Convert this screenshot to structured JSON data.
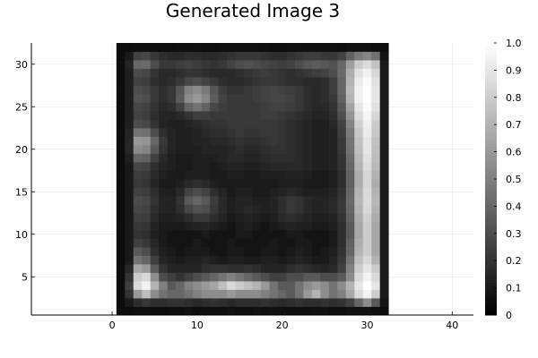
{
  "chart_data": {
    "type": "heatmap",
    "title": "Generated Image 3",
    "xlabel": "",
    "ylabel": "",
    "xlim": [
      -9.5,
      42.5
    ],
    "ylim": [
      0.5,
      32.5
    ],
    "x_ticks": [
      0,
      10,
      20,
      30,
      40
    ],
    "y_ticks": [
      5,
      10,
      15,
      20,
      25,
      30
    ],
    "grid": true,
    "colormap": "grays",
    "color_range": [
      0,
      1
    ],
    "colorbar_ticks": [
      0,
      0.1,
      0.2,
      0.3,
      0.4,
      0.5,
      0.6,
      0.7,
      0.8,
      0.9,
      1.0
    ],
    "colorbar_labels": [
      "0",
      "0.1",
      "0.2",
      "0.3",
      "0.4",
      "0.5",
      "0.6",
      "0.7",
      "0.8",
      "0.9",
      "1.0"
    ],
    "matrix_size": [
      32,
      32
    ],
    "matrix_rows_bottom_to_top": [
      [
        0.05,
        0.05,
        0.06,
        0.06,
        0.05,
        0.05,
        0.06,
        0.06,
        0.07,
        0.06,
        0.06,
        0.06,
        0.06,
        0.07,
        0.06,
        0.06,
        0.07,
        0.06,
        0.07,
        0.07,
        0.06,
        0.06,
        0.06,
        0.07,
        0.07,
        0.06,
        0.06,
        0.07,
        0.07,
        0.07,
        0.06,
        0.05
      ],
      [
        0.05,
        0.1,
        0.18,
        0.22,
        0.18,
        0.18,
        0.2,
        0.2,
        0.18,
        0.16,
        0.18,
        0.2,
        0.18,
        0.16,
        0.18,
        0.18,
        0.18,
        0.2,
        0.18,
        0.16,
        0.18,
        0.2,
        0.18,
        0.18,
        0.2,
        0.18,
        0.2,
        0.25,
        0.4,
        0.55,
        0.35,
        0.08
      ],
      [
        0.05,
        0.2,
        0.6,
        0.75,
        0.55,
        0.45,
        0.4,
        0.4,
        0.45,
        0.5,
        0.55,
        0.55,
        0.55,
        0.6,
        0.55,
        0.55,
        0.55,
        0.5,
        0.45,
        0.4,
        0.35,
        0.45,
        0.6,
        0.7,
        0.55,
        0.45,
        0.5,
        0.65,
        0.85,
        0.95,
        0.8,
        0.1
      ],
      [
        0.05,
        0.25,
        0.85,
        0.95,
        0.7,
        0.5,
        0.35,
        0.4,
        0.5,
        0.55,
        0.6,
        0.65,
        0.75,
        0.85,
        0.8,
        0.75,
        0.7,
        0.6,
        0.45,
        0.35,
        0.35,
        0.45,
        0.55,
        0.6,
        0.55,
        0.45,
        0.55,
        0.7,
        0.9,
        1.0,
        0.9,
        0.1
      ],
      [
        0.05,
        0.2,
        0.8,
        0.85,
        0.55,
        0.3,
        0.25,
        0.2,
        0.25,
        0.3,
        0.35,
        0.4,
        0.45,
        0.5,
        0.45,
        0.4,
        0.35,
        0.3,
        0.25,
        0.25,
        0.3,
        0.3,
        0.35,
        0.35,
        0.3,
        0.3,
        0.35,
        0.55,
        0.85,
        0.95,
        0.85,
        0.1
      ],
      [
        0.05,
        0.15,
        0.65,
        0.6,
        0.35,
        0.2,
        0.15,
        0.15,
        0.15,
        0.15,
        0.18,
        0.2,
        0.2,
        0.18,
        0.18,
        0.2,
        0.18,
        0.15,
        0.15,
        0.15,
        0.18,
        0.2,
        0.18,
        0.16,
        0.15,
        0.16,
        0.25,
        0.5,
        0.8,
        0.9,
        0.8,
        0.1
      ],
      [
        0.05,
        0.1,
        0.45,
        0.4,
        0.25,
        0.15,
        0.12,
        0.1,
        0.12,
        0.12,
        0.14,
        0.12,
        0.1,
        0.12,
        0.12,
        0.1,
        0.1,
        0.12,
        0.12,
        0.1,
        0.12,
        0.14,
        0.12,
        0.1,
        0.1,
        0.14,
        0.22,
        0.45,
        0.75,
        0.85,
        0.7,
        0.1
      ],
      [
        0.05,
        0.1,
        0.35,
        0.3,
        0.18,
        0.12,
        0.1,
        0.08,
        0.1,
        0.1,
        0.1,
        0.08,
        0.08,
        0.1,
        0.1,
        0.08,
        0.08,
        0.1,
        0.1,
        0.08,
        0.1,
        0.12,
        0.1,
        0.08,
        0.1,
        0.12,
        0.2,
        0.4,
        0.7,
        0.8,
        0.65,
        0.1
      ],
      [
        0.05,
        0.1,
        0.25,
        0.22,
        0.15,
        0.1,
        0.08,
        0.08,
        0.08,
        0.1,
        0.08,
        0.08,
        0.08,
        0.1,
        0.08,
        0.08,
        0.08,
        0.08,
        0.1,
        0.08,
        0.08,
        0.1,
        0.1,
        0.08,
        0.08,
        0.1,
        0.18,
        0.38,
        0.68,
        0.8,
        0.65,
        0.1
      ],
      [
        0.05,
        0.1,
        0.2,
        0.18,
        0.12,
        0.1,
        0.08,
        0.08,
        0.08,
        0.08,
        0.1,
        0.08,
        0.08,
        0.08,
        0.1,
        0.1,
        0.08,
        0.08,
        0.08,
        0.08,
        0.1,
        0.1,
        0.08,
        0.08,
        0.08,
        0.1,
        0.18,
        0.35,
        0.65,
        0.8,
        0.65,
        0.1
      ],
      [
        0.05,
        0.1,
        0.22,
        0.2,
        0.14,
        0.1,
        0.1,
        0.1,
        0.12,
        0.14,
        0.15,
        0.12,
        0.1,
        0.08,
        0.1,
        0.12,
        0.1,
        0.08,
        0.1,
        0.12,
        0.14,
        0.12,
        0.12,
        0.1,
        0.1,
        0.12,
        0.18,
        0.35,
        0.65,
        0.8,
        0.65,
        0.1
      ],
      [
        0.05,
        0.1,
        0.25,
        0.24,
        0.16,
        0.12,
        0.12,
        0.14,
        0.18,
        0.22,
        0.22,
        0.18,
        0.14,
        0.1,
        0.12,
        0.14,
        0.12,
        0.1,
        0.12,
        0.16,
        0.18,
        0.16,
        0.14,
        0.12,
        0.12,
        0.14,
        0.2,
        0.38,
        0.68,
        0.82,
        0.68,
        0.1
      ],
      [
        0.05,
        0.1,
        0.28,
        0.26,
        0.18,
        0.14,
        0.14,
        0.18,
        0.28,
        0.32,
        0.3,
        0.22,
        0.16,
        0.12,
        0.14,
        0.16,
        0.14,
        0.12,
        0.14,
        0.18,
        0.22,
        0.2,
        0.16,
        0.14,
        0.14,
        0.16,
        0.22,
        0.4,
        0.7,
        0.85,
        0.7,
        0.1
      ],
      [
        0.05,
        0.1,
        0.3,
        0.28,
        0.2,
        0.14,
        0.14,
        0.2,
        0.35,
        0.4,
        0.34,
        0.24,
        0.16,
        0.12,
        0.14,
        0.14,
        0.12,
        0.12,
        0.14,
        0.18,
        0.22,
        0.2,
        0.16,
        0.14,
        0.14,
        0.16,
        0.22,
        0.42,
        0.72,
        0.86,
        0.72,
        0.1
      ],
      [
        0.05,
        0.1,
        0.26,
        0.24,
        0.18,
        0.12,
        0.12,
        0.16,
        0.26,
        0.3,
        0.26,
        0.18,
        0.14,
        0.1,
        0.12,
        0.12,
        0.1,
        0.1,
        0.12,
        0.14,
        0.16,
        0.14,
        0.12,
        0.12,
        0.12,
        0.14,
        0.2,
        0.4,
        0.7,
        0.85,
        0.7,
        0.1
      ],
      [
        0.05,
        0.1,
        0.22,
        0.2,
        0.15,
        0.1,
        0.1,
        0.12,
        0.16,
        0.18,
        0.16,
        0.12,
        0.1,
        0.1,
        0.1,
        0.1,
        0.1,
        0.1,
        0.1,
        0.12,
        0.12,
        0.12,
        0.1,
        0.1,
        0.1,
        0.12,
        0.18,
        0.38,
        0.68,
        0.84,
        0.68,
        0.1
      ],
      [
        0.05,
        0.1,
        0.24,
        0.22,
        0.16,
        0.12,
        0.1,
        0.1,
        0.12,
        0.12,
        0.12,
        0.1,
        0.1,
        0.12,
        0.12,
        0.1,
        0.1,
        0.12,
        0.12,
        0.12,
        0.14,
        0.14,
        0.12,
        0.1,
        0.1,
        0.12,
        0.18,
        0.38,
        0.68,
        0.84,
        0.7,
        0.1
      ],
      [
        0.05,
        0.1,
        0.28,
        0.26,
        0.18,
        0.14,
        0.12,
        0.1,
        0.1,
        0.12,
        0.12,
        0.1,
        0.12,
        0.14,
        0.14,
        0.12,
        0.12,
        0.14,
        0.16,
        0.16,
        0.16,
        0.16,
        0.14,
        0.12,
        0.12,
        0.14,
        0.2,
        0.4,
        0.7,
        0.86,
        0.72,
        0.1
      ],
      [
        0.05,
        0.12,
        0.4,
        0.38,
        0.25,
        0.16,
        0.12,
        0.1,
        0.1,
        0.12,
        0.12,
        0.12,
        0.14,
        0.16,
        0.16,
        0.14,
        0.14,
        0.16,
        0.18,
        0.18,
        0.18,
        0.16,
        0.14,
        0.12,
        0.12,
        0.14,
        0.2,
        0.42,
        0.72,
        0.88,
        0.74,
        0.1
      ],
      [
        0.05,
        0.15,
        0.55,
        0.52,
        0.35,
        0.2,
        0.14,
        0.12,
        0.12,
        0.12,
        0.14,
        0.14,
        0.14,
        0.16,
        0.18,
        0.16,
        0.16,
        0.18,
        0.2,
        0.2,
        0.18,
        0.16,
        0.14,
        0.12,
        0.12,
        0.14,
        0.22,
        0.45,
        0.75,
        0.9,
        0.75,
        0.1
      ],
      [
        0.05,
        0.15,
        0.6,
        0.58,
        0.4,
        0.22,
        0.14,
        0.12,
        0.12,
        0.14,
        0.14,
        0.16,
        0.16,
        0.18,
        0.2,
        0.18,
        0.18,
        0.2,
        0.22,
        0.2,
        0.18,
        0.16,
        0.14,
        0.12,
        0.12,
        0.14,
        0.22,
        0.46,
        0.76,
        0.9,
        0.76,
        0.1
      ],
      [
        0.05,
        0.14,
        0.45,
        0.44,
        0.3,
        0.18,
        0.14,
        0.12,
        0.12,
        0.14,
        0.16,
        0.18,
        0.18,
        0.2,
        0.22,
        0.2,
        0.2,
        0.22,
        0.22,
        0.2,
        0.18,
        0.16,
        0.14,
        0.12,
        0.12,
        0.14,
        0.24,
        0.48,
        0.78,
        0.92,
        0.78,
        0.1
      ],
      [
        0.05,
        0.12,
        0.3,
        0.28,
        0.2,
        0.14,
        0.12,
        0.12,
        0.14,
        0.16,
        0.18,
        0.2,
        0.2,
        0.22,
        0.22,
        0.22,
        0.22,
        0.22,
        0.22,
        0.2,
        0.18,
        0.16,
        0.14,
        0.12,
        0.12,
        0.16,
        0.26,
        0.52,
        0.82,
        0.94,
        0.8,
        0.1
      ],
      [
        0.05,
        0.12,
        0.26,
        0.24,
        0.18,
        0.14,
        0.14,
        0.16,
        0.2,
        0.24,
        0.24,
        0.22,
        0.22,
        0.22,
        0.22,
        0.22,
        0.22,
        0.24,
        0.24,
        0.22,
        0.2,
        0.18,
        0.16,
        0.14,
        0.14,
        0.18,
        0.3,
        0.58,
        0.86,
        0.96,
        0.84,
        0.1
      ],
      [
        0.05,
        0.12,
        0.28,
        0.26,
        0.2,
        0.16,
        0.18,
        0.26,
        0.4,
        0.45,
        0.38,
        0.28,
        0.24,
        0.22,
        0.22,
        0.22,
        0.22,
        0.24,
        0.26,
        0.26,
        0.24,
        0.22,
        0.18,
        0.16,
        0.16,
        0.2,
        0.34,
        0.64,
        0.9,
        0.98,
        0.88,
        0.1
      ],
      [
        0.05,
        0.12,
        0.32,
        0.3,
        0.22,
        0.18,
        0.22,
        0.36,
        0.55,
        0.6,
        0.52,
        0.36,
        0.26,
        0.22,
        0.22,
        0.22,
        0.24,
        0.26,
        0.28,
        0.28,
        0.26,
        0.22,
        0.18,
        0.16,
        0.18,
        0.22,
        0.38,
        0.7,
        0.94,
        1.0,
        0.9,
        0.1
      ],
      [
        0.05,
        0.12,
        0.3,
        0.28,
        0.22,
        0.18,
        0.22,
        0.34,
        0.5,
        0.55,
        0.48,
        0.34,
        0.24,
        0.2,
        0.2,
        0.22,
        0.24,
        0.26,
        0.28,
        0.26,
        0.24,
        0.22,
        0.18,
        0.16,
        0.18,
        0.24,
        0.4,
        0.72,
        0.94,
        1.0,
        0.9,
        0.1
      ],
      [
        0.05,
        0.12,
        0.26,
        0.24,
        0.18,
        0.16,
        0.18,
        0.22,
        0.28,
        0.3,
        0.26,
        0.22,
        0.18,
        0.16,
        0.16,
        0.18,
        0.2,
        0.22,
        0.22,
        0.2,
        0.18,
        0.18,
        0.16,
        0.16,
        0.18,
        0.24,
        0.4,
        0.7,
        0.92,
        0.98,
        0.88,
        0.1
      ],
      [
        0.05,
        0.12,
        0.3,
        0.28,
        0.2,
        0.16,
        0.16,
        0.18,
        0.2,
        0.2,
        0.18,
        0.16,
        0.16,
        0.16,
        0.18,
        0.2,
        0.22,
        0.24,
        0.22,
        0.2,
        0.18,
        0.2,
        0.22,
        0.24,
        0.26,
        0.3,
        0.42,
        0.68,
        0.88,
        0.94,
        0.84,
        0.1
      ],
      [
        0.05,
        0.14,
        0.4,
        0.42,
        0.3,
        0.22,
        0.22,
        0.24,
        0.26,
        0.24,
        0.22,
        0.2,
        0.22,
        0.26,
        0.3,
        0.32,
        0.3,
        0.28,
        0.26,
        0.24,
        0.26,
        0.3,
        0.34,
        0.36,
        0.34,
        0.32,
        0.4,
        0.62,
        0.8,
        0.86,
        0.76,
        0.1
      ],
      [
        0.05,
        0.1,
        0.26,
        0.28,
        0.22,
        0.18,
        0.16,
        0.16,
        0.18,
        0.18,
        0.16,
        0.16,
        0.18,
        0.2,
        0.22,
        0.22,
        0.22,
        0.2,
        0.18,
        0.18,
        0.2,
        0.22,
        0.24,
        0.24,
        0.22,
        0.22,
        0.26,
        0.38,
        0.48,
        0.52,
        0.44,
        0.08
      ],
      [
        0.05,
        0.05,
        0.06,
        0.06,
        0.05,
        0.05,
        0.05,
        0.06,
        0.06,
        0.06,
        0.05,
        0.05,
        0.06,
        0.06,
        0.06,
        0.06,
        0.06,
        0.06,
        0.05,
        0.05,
        0.06,
        0.06,
        0.06,
        0.06,
        0.06,
        0.06,
        0.06,
        0.07,
        0.07,
        0.07,
        0.06,
        0.05
      ]
    ]
  }
}
